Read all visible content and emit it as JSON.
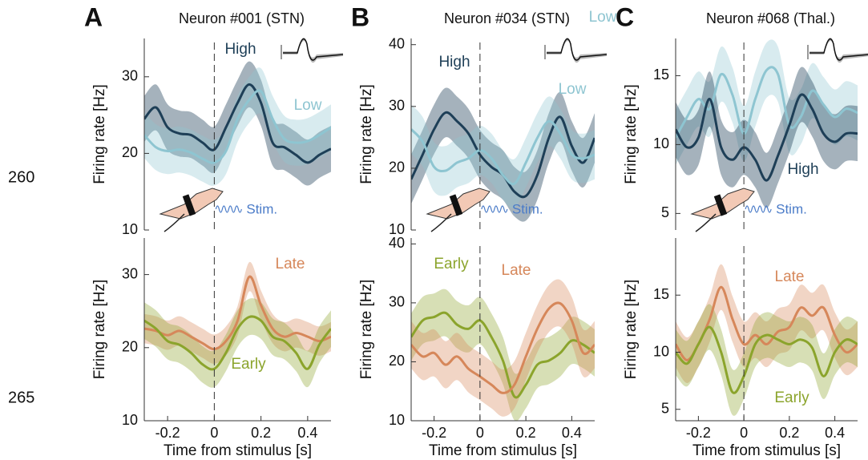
{
  "line_numbers": [
    "260",
    "265"
  ],
  "chart_data": [
    {
      "type": "line",
      "panel": "A",
      "title": "Neuron #001 (STN)",
      "ylabel": "Firing rate [Hz]",
      "stim_label": "Stim.",
      "x": [
        -0.3,
        -0.25,
        -0.2,
        -0.15,
        -0.1,
        -0.05,
        0,
        0.05,
        0.1,
        0.15,
        0.2,
        0.25,
        0.3,
        0.35,
        0.4,
        0.45,
        0.5
      ],
      "xlim": [
        -0.3,
        0.5
      ],
      "ylim": [
        10,
        35
      ],
      "yticks": [
        10,
        20,
        30
      ],
      "vline": 0,
      "series": [
        {
          "name": "High",
          "color": "#1e3f57",
          "band": 3,
          "values": [
            24.5,
            26,
            23.4,
            22.6,
            22.4,
            21.4,
            20.5,
            23.4,
            26.6,
            29,
            26.6,
            21.4,
            20.8,
            19.8,
            18.8,
            19.8,
            20.6
          ]
        },
        {
          "name": "Low",
          "color": "#8ec5d1",
          "band": 3,
          "values": [
            22.4,
            20.8,
            20.3,
            20.5,
            20.1,
            19.3,
            18.8,
            20.3,
            24.5,
            27,
            28.1,
            24.5,
            21.9,
            21.4,
            21.6,
            22.4,
            23.4
          ]
        }
      ]
    },
    {
      "type": "line",
      "panel": "B",
      "title": "Neuron #034 (STN)",
      "ylabel": "Firing rate [Hz]",
      "stim_label": "Stim.",
      "x": [
        -0.3,
        -0.25,
        -0.2,
        -0.15,
        -0.1,
        -0.05,
        0,
        0.05,
        0.1,
        0.15,
        0.2,
        0.25,
        0.3,
        0.35,
        0.4,
        0.45,
        0.5
      ],
      "xlim": [
        -0.3,
        0.5
      ],
      "ylim": [
        10,
        41
      ],
      "yticks": [
        10,
        20,
        30,
        40
      ],
      "vline": 0,
      "series": [
        {
          "name": "High",
          "color": "#1e3f57",
          "band": 4,
          "values": [
            18.2,
            22.2,
            26.3,
            29,
            27.6,
            25.6,
            22.2,
            20.2,
            18.9,
            16.2,
            15.5,
            18.9,
            24.9,
            28.3,
            23.6,
            20.9,
            24.9
          ]
        },
        {
          "name": "Low",
          "color": "#8ec5d1",
          "band": 4,
          "values": [
            26.3,
            24.3,
            20.2,
            19.6,
            20.9,
            21.6,
            22.9,
            21.6,
            18.9,
            17.5,
            20.9,
            24.9,
            27.6,
            25.6,
            22.2,
            21.6,
            22.2
          ]
        }
      ]
    },
    {
      "type": "line",
      "panel": "C",
      "title": "Neuron #068 (Thal.)",
      "ylabel": "Firing rate [Hz]",
      "stim_label": "Stim.",
      "x": [
        -0.3,
        -0.25,
        -0.2,
        -0.15,
        -0.1,
        -0.05,
        0,
        0.05,
        0.1,
        0.15,
        0.2,
        0.25,
        0.3,
        0.35,
        0.4,
        0.45,
        0.5
      ],
      "xlim": [
        -0.3,
        0.5
      ],
      "ylim": [
        3.8,
        17.7
      ],
      "yticks": [
        5,
        10,
        15
      ],
      "vline": 0,
      "series": [
        {
          "name": "Low",
          "color": "#8ec5d1",
          "band": 2,
          "values": [
            10.5,
            12,
            13.3,
            12.6,
            15.1,
            13.6,
            10.8,
            13.3,
            15.4,
            15.1,
            11.4,
            12,
            13.9,
            12.9,
            12,
            12.6,
            12.3
          ]
        },
        {
          "name": "High",
          "color": "#1e3f57",
          "band": 2,
          "values": [
            11.1,
            9.8,
            10.5,
            13.3,
            9.8,
            8.9,
            9.8,
            8.9,
            7.4,
            9.2,
            11.4,
            13.6,
            12.6,
            10.8,
            10.2,
            10.8,
            10.8
          ]
        }
      ]
    },
    {
      "type": "line",
      "xlabel": "Time from stimulus [s]",
      "ylabel": "Firing rate [Hz]",
      "x": [
        -0.3,
        -0.25,
        -0.2,
        -0.15,
        -0.1,
        -0.05,
        0,
        0.05,
        0.1,
        0.15,
        0.2,
        0.25,
        0.3,
        0.35,
        0.4,
        0.45,
        0.5
      ],
      "xlim": [
        -0.3,
        0.5
      ],
      "xticks": [
        -0.2,
        0,
        0.2,
        0.4
      ],
      "ylim": [
        10,
        35
      ],
      "yticks": [
        10,
        20,
        30
      ],
      "vline": 0,
      "series": [
        {
          "name": "Late",
          "color": "#d6875a",
          "band": 2,
          "values": [
            22.6,
            22.3,
            21.7,
            22.3,
            21.5,
            20.6,
            19.8,
            20.9,
            23.7,
            29.7,
            25.8,
            22.6,
            21.5,
            22,
            21.5,
            20.9,
            21.5
          ]
        },
        {
          "name": "Early",
          "color": "#8ba42c",
          "band": 2.5,
          "values": [
            23.7,
            22.6,
            20.9,
            20.4,
            19.3,
            17.7,
            17.1,
            19.3,
            22.6,
            24.2,
            23.7,
            21.5,
            20.9,
            19.3,
            17.1,
            20.4,
            22.6
          ]
        }
      ]
    },
    {
      "type": "line",
      "xlabel": "Time from stimulus [s]",
      "ylabel": "Firing rate [Hz]",
      "x": [
        -0.3,
        -0.25,
        -0.2,
        -0.15,
        -0.1,
        -0.05,
        0,
        0.05,
        0.1,
        0.15,
        0.2,
        0.25,
        0.3,
        0.35,
        0.4,
        0.45,
        0.5
      ],
      "xlim": [
        -0.3,
        0.5
      ],
      "xticks": [
        -0.2,
        0,
        0.2,
        0.4
      ],
      "ylim": [
        10,
        41
      ],
      "yticks": [
        10,
        20,
        30,
        40
      ],
      "vline": 0,
      "series": [
        {
          "name": "Early",
          "color": "#8ba42c",
          "band": 4,
          "values": [
            24.2,
            27,
            27.6,
            28.3,
            26.3,
            25.6,
            27,
            24.2,
            20.2,
            14.1,
            16.1,
            19.5,
            20.2,
            21.5,
            23.6,
            22.9,
            21.5
          ]
        },
        {
          "name": "Late",
          "color": "#d6875a",
          "band": 4,
          "values": [
            22.9,
            20.9,
            21.5,
            19.5,
            20.9,
            18.8,
            17.5,
            16.1,
            14.7,
            16.1,
            20.9,
            25.6,
            29,
            29.9,
            27,
            21.5,
            22.9
          ]
        }
      ]
    },
    {
      "type": "line",
      "xlabel": "Time from stimulus [s]",
      "ylabel": "Firing rate [Hz]",
      "x": [
        -0.3,
        -0.25,
        -0.2,
        -0.15,
        -0.1,
        -0.05,
        0,
        0.05,
        0.1,
        0.15,
        0.2,
        0.25,
        0.3,
        0.35,
        0.4,
        0.45,
        0.5
      ],
      "xlim": [
        -0.3,
        0.5
      ],
      "xticks": [
        -0.2,
        0,
        0.2,
        0.4
      ],
      "ylim": [
        4,
        20
      ],
      "yticks": [
        5,
        10,
        15
      ],
      "vline": 0,
      "series": [
        {
          "name": "Late",
          "color": "#d6875a",
          "band": 2,
          "values": [
            10.7,
            9.3,
            10.7,
            12.9,
            15.7,
            12.9,
            10.7,
            11.5,
            10.7,
            11.8,
            12.2,
            13.9,
            13.2,
            13.9,
            11.5,
            10,
            10.7
          ]
        },
        {
          "name": "Early",
          "color": "#8ba42c",
          "band": 2,
          "values": [
            10,
            9,
            10.7,
            12.2,
            10,
            6.5,
            7.9,
            10.7,
            11.5,
            11.1,
            10.7,
            11.1,
            10.4,
            7.9,
            10,
            11.1,
            10.7
          ]
        }
      ]
    }
  ]
}
